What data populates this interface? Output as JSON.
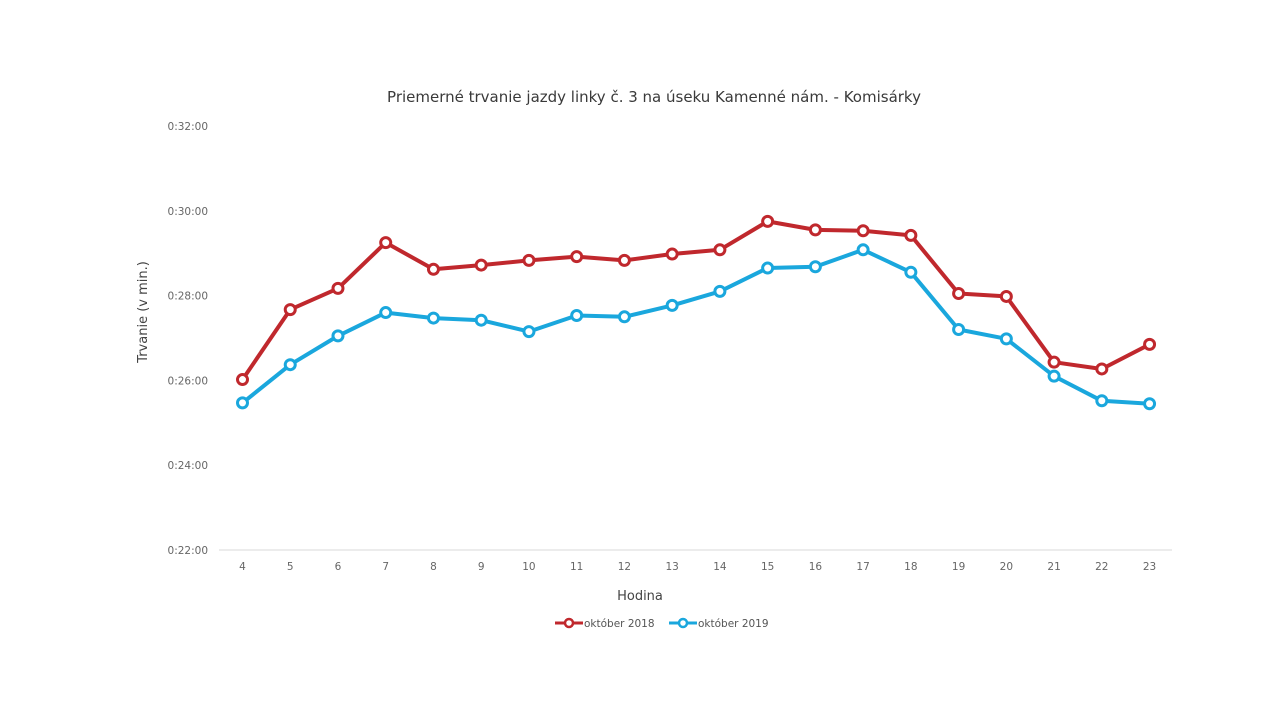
{
  "chart_data": {
    "type": "line",
    "title": "Priemerné trvanie jazdy linky č. 3 na úseku Kamenné nám. - Komisárky",
    "xlabel": "Hodina",
    "ylabel": "Trvanie (v min.)",
    "categories": [
      "4",
      "5",
      "6",
      "7",
      "8",
      "9",
      "10",
      "11",
      "12",
      "13",
      "14",
      "15",
      "16",
      "17",
      "18",
      "19",
      "20",
      "21",
      "22",
      "23"
    ],
    "yticks": [
      "0:22:00",
      "0:24:00",
      "0:26:00",
      "0:28:00",
      "0:30:00",
      "0:32:00"
    ],
    "ylim_minutes": [
      22,
      32
    ],
    "grid": false,
    "legend_position": "bottom",
    "series": [
      {
        "name": "október 2018",
        "color": "#c0282d",
        "values_minutes": [
          26.02,
          27.67,
          28.17,
          29.25,
          28.62,
          28.72,
          28.83,
          28.92,
          28.83,
          28.98,
          29.08,
          29.75,
          29.55,
          29.53,
          29.42,
          28.05,
          27.98,
          26.43,
          26.27,
          26.85
        ]
      },
      {
        "name": "október 2019",
        "color": "#1aa7dd",
        "values_minutes": [
          25.47,
          26.37,
          27.05,
          27.6,
          27.47,
          27.42,
          27.15,
          27.53,
          27.5,
          27.77,
          28.1,
          28.65,
          28.68,
          29.08,
          28.55,
          27.2,
          26.98,
          26.1,
          25.52,
          25.45
        ]
      }
    ]
  }
}
